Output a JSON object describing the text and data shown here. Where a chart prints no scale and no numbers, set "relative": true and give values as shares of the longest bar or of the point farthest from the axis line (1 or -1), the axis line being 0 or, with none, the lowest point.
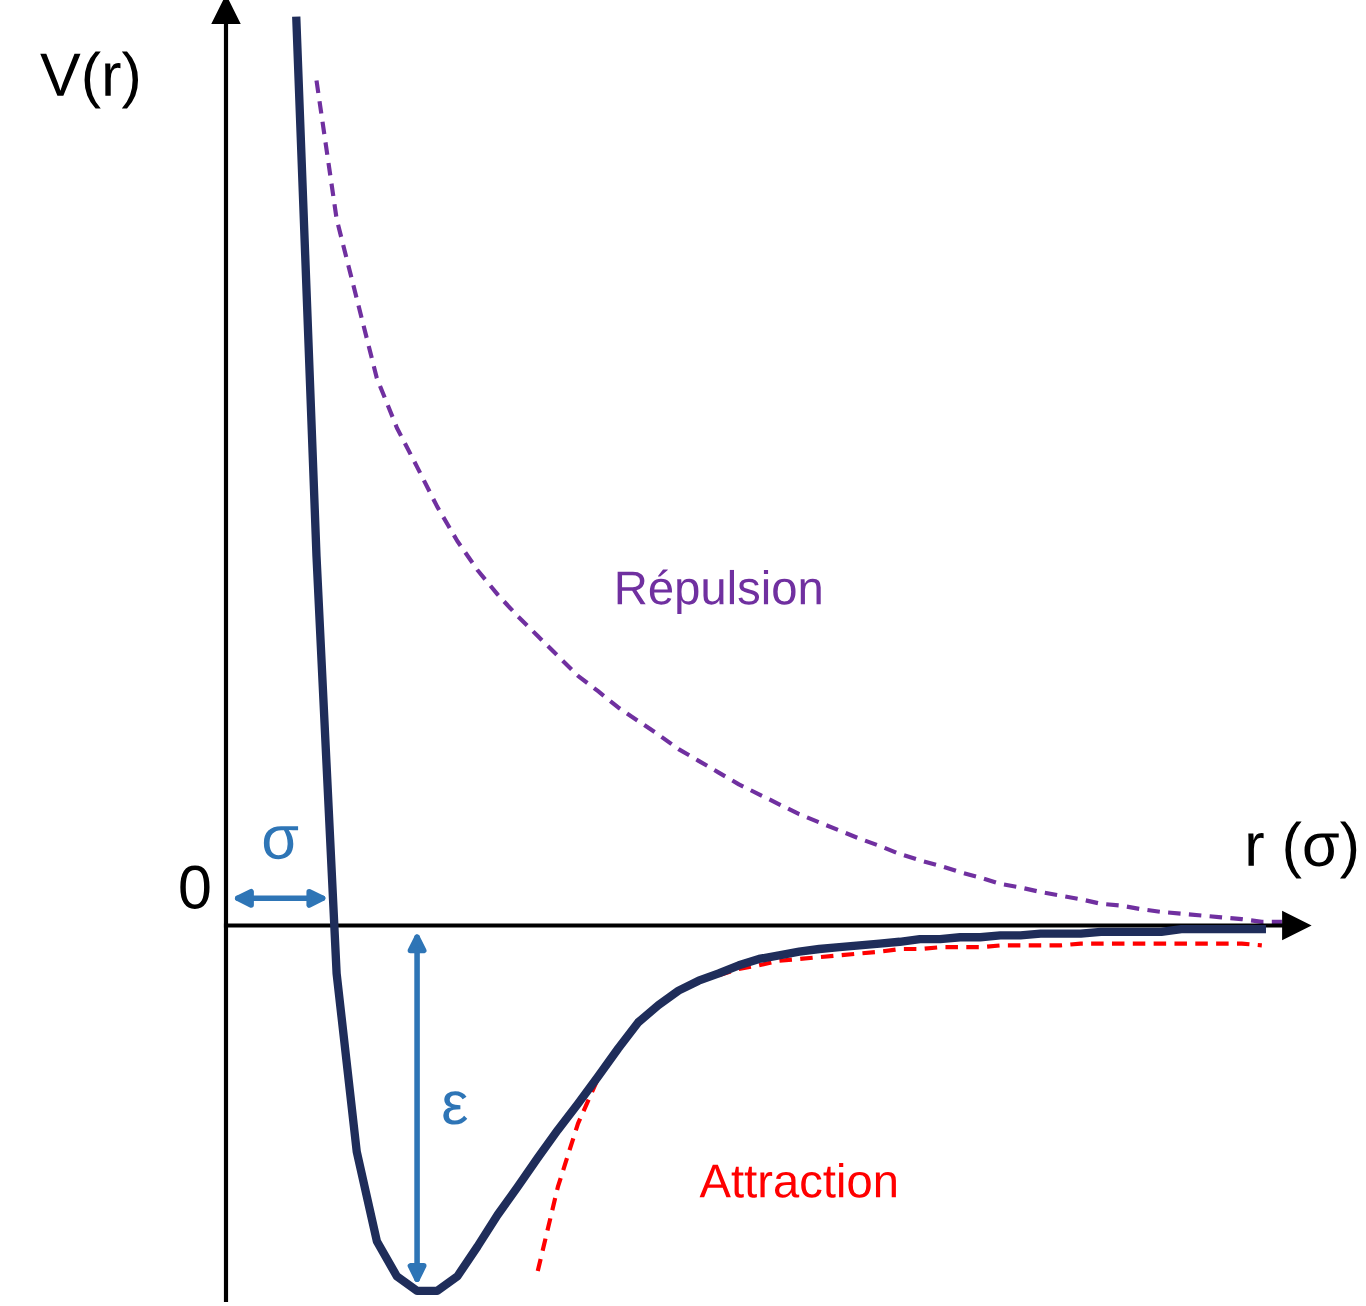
{
  "chart_data": {
    "type": "line",
    "relative": true,
    "xlabel": "r (σ)",
    "ylabel": "V(r)",
    "categories": [
      null,
      null,
      null,
      null,
      null,
      null,
      null,
      null,
      null,
      null,
      null,
      null,
      null,
      null,
      null,
      null,
      null,
      null,
      null,
      null,
      null,
      null,
      null,
      null,
      null,
      null,
      null,
      null,
      null,
      null,
      null,
      null,
      null,
      null,
      null,
      null,
      null,
      null,
      null,
      null,
      null,
      null,
      null,
      null,
      null,
      null,
      null,
      null,
      null,
      null
    ],
    "annotations": [
      "0",
      "σ",
      "ε"
    ],
    "series": [
      {
        "color": "#1f2d5a",
        "line_style": "solid",
        "values": [
          1.0,
          0.408,
          -0.053,
          -0.25,
          -0.349,
          -0.388,
          -0.404,
          -0.404,
          -0.388,
          -0.355,
          -0.32,
          -0.289,
          -0.257,
          -0.226,
          -0.197,
          -0.167,
          -0.136,
          -0.107,
          -0.088,
          -0.072,
          -0.061,
          -0.053,
          -0.044,
          -0.037,
          -0.033,
          -0.029,
          -0.026,
          -0.024,
          -0.022,
          -0.02,
          -0.018,
          -0.015,
          -0.015,
          -0.013,
          -0.013,
          -0.011,
          -0.011,
          -0.009,
          -0.009,
          -0.009,
          -0.007,
          -0.007,
          -0.007,
          -0.007,
          -0.004,
          -0.004,
          -0.004,
          -0.004,
          -0.004,
          null
        ]
      },
      {
        "name": "Répulsion",
        "color": "#7030a0",
        "line_style": "dashed",
        "values": [
          null,
          0.934,
          0.781,
          0.693,
          0.605,
          0.55,
          0.507,
          0.463,
          0.425,
          0.393,
          0.366,
          0.342,
          0.32,
          0.298,
          0.276,
          0.259,
          0.241,
          0.226,
          0.211,
          0.195,
          0.182,
          0.169,
          0.156,
          0.145,
          0.134,
          0.123,
          0.114,
          0.105,
          0.096,
          0.088,
          0.079,
          0.072,
          0.066,
          0.059,
          0.053,
          0.046,
          0.042,
          0.037,
          0.033,
          0.029,
          0.024,
          0.022,
          0.018,
          0.015,
          0.013,
          0.011,
          0.009,
          0.007,
          0.004,
          0.004
        ]
      },
      {
        "name": "Attraction",
        "color": "#ff0000",
        "line_style": "dashed",
        "values": [
          null,
          null,
          null,
          null,
          null,
          null,
          null,
          null,
          null,
          null,
          null,
          null,
          -0.382,
          -0.289,
          -0.219,
          -0.169,
          null,
          null,
          null,
          null,
          null,
          -0.055,
          -0.048,
          -0.044,
          -0.039,
          -0.037,
          -0.035,
          -0.033,
          -0.031,
          -0.029,
          -0.026,
          -0.026,
          -0.024,
          -0.024,
          -0.024,
          -0.022,
          -0.022,
          -0.022,
          -0.022,
          -0.02,
          -0.02,
          -0.02,
          -0.02,
          -0.02,
          -0.02,
          -0.02,
          -0.02,
          -0.02,
          -0.022,
          null
        ]
      }
    ]
  }
}
